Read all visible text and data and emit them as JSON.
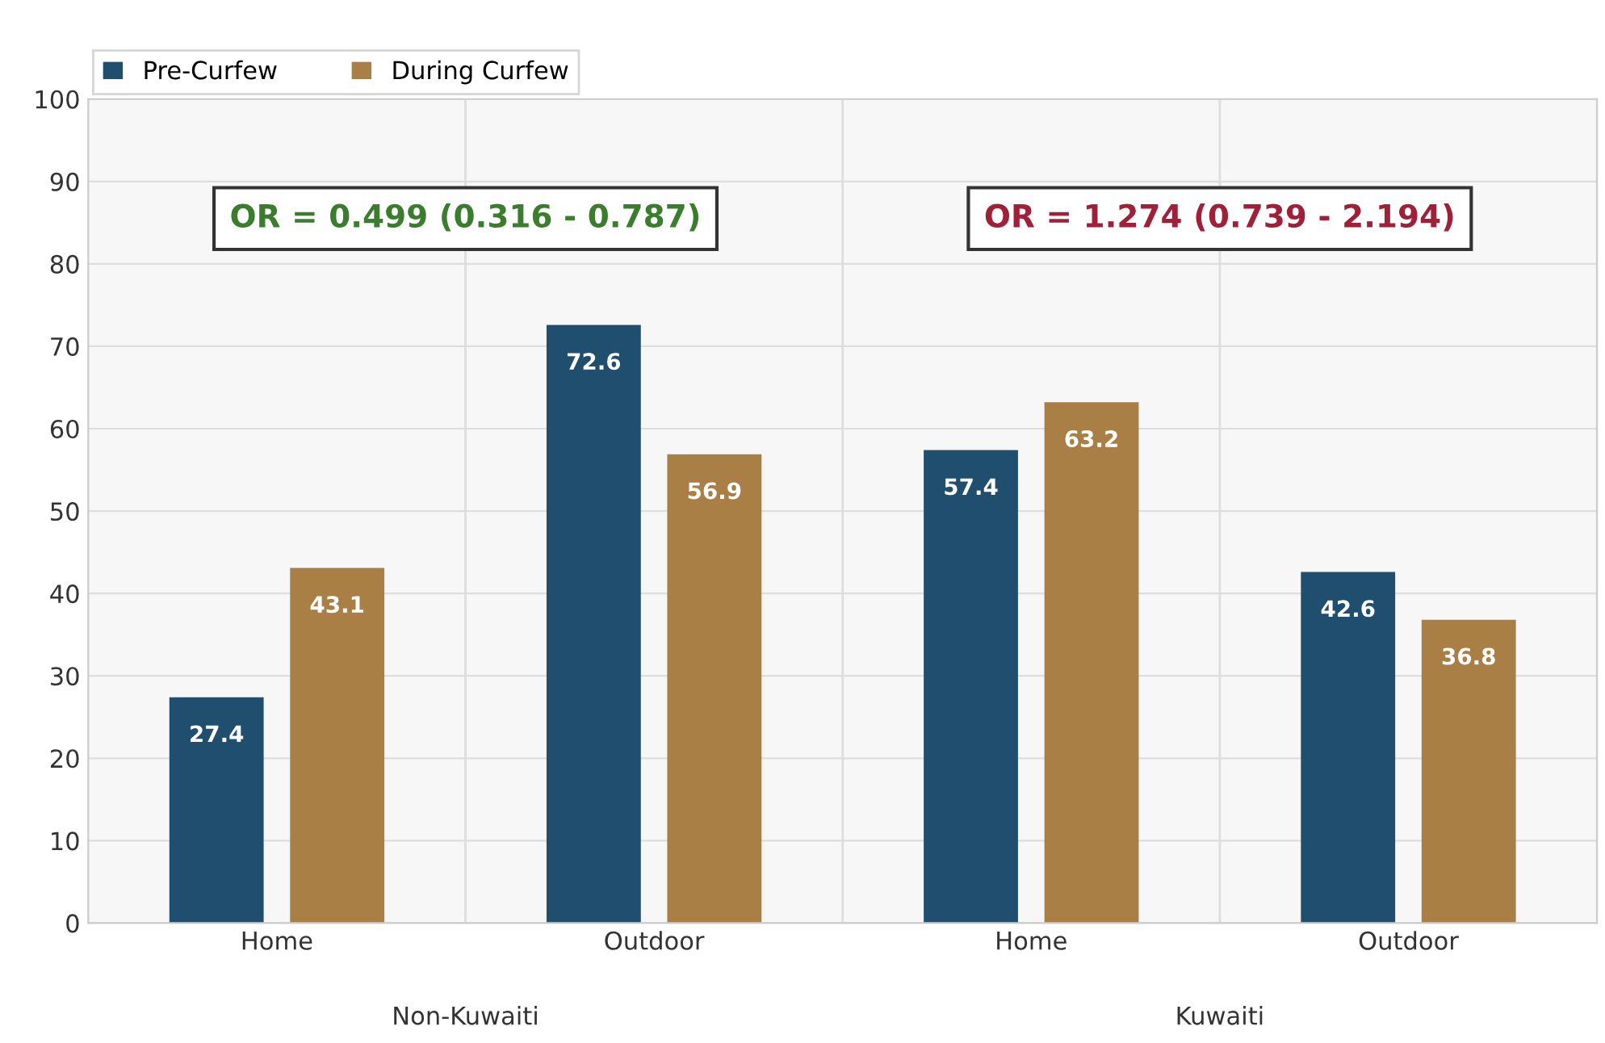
{
  "chart_data": {
    "type": "bar",
    "categories": [
      "Home",
      "Outdoor",
      "Home",
      "Outdoor"
    ],
    "series": [
      {
        "name": "Pre-Curfew",
        "color": "#1f4e6e",
        "values": [
          27.4,
          72.6,
          57.4,
          42.6
        ]
      },
      {
        "name": "During Curfew",
        "color": "#a97f46",
        "values": [
          43.1,
          56.9,
          63.2,
          36.8
        ]
      }
    ],
    "ylim": [
      0,
      100
    ],
    "yticks": [
      0,
      10,
      20,
      30,
      40,
      50,
      60,
      70,
      80,
      90,
      100
    ],
    "grid": true,
    "legend": "top left",
    "data_labels": true,
    "annotations": [
      "OR = 0.499 (0.316 - 0.787)",
      "OR = 1.274 (0.739 - 2.194)",
      "Non-Kuwaiti",
      "Kuwaiti"
    ]
  }
}
